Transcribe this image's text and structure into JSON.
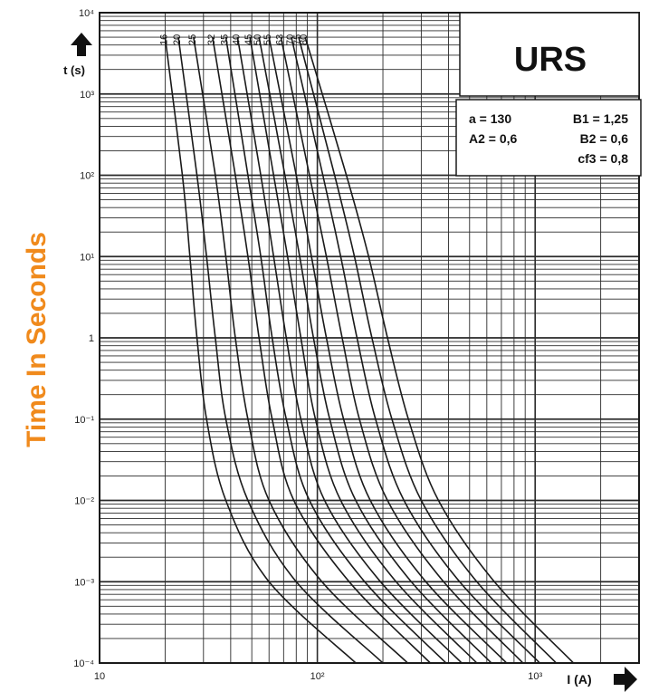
{
  "chart_data": {
    "type": "line",
    "title": "URS",
    "ylabel_side": "Time In Seconds",
    "ylabel_axis": "t (s)",
    "xlabel": "I (A)",
    "x_scale": "log",
    "y_scale": "log",
    "xlim": [
      10,
      3000
    ],
    "ylim": [
      0.0001,
      10000
    ],
    "grid": true,
    "x_ticks": [
      {
        "value": 10,
        "label": "10"
      },
      {
        "value": 100,
        "label": "10²"
      },
      {
        "value": 1000,
        "label": "10³"
      }
    ],
    "y_ticks": [
      {
        "value": 10000,
        "label": "10⁴"
      },
      {
        "value": 1000,
        "label": "10³"
      },
      {
        "value": 100,
        "label": "10²"
      },
      {
        "value": 10,
        "label": "10¹"
      },
      {
        "value": 1,
        "label": "1"
      },
      {
        "value": 0.1,
        "label": "10⁻¹"
      },
      {
        "value": 0.01,
        "label": "10⁻²"
      },
      {
        "value": 0.001,
        "label": "10⁻³"
      },
      {
        "value": 0.0001,
        "label": "10⁻⁴"
      }
    ],
    "parameters": [
      {
        "label": "a",
        "value": "130"
      },
      {
        "label": "B1",
        "value": "1,25"
      },
      {
        "label": "A2",
        "value": "0,6"
      },
      {
        "label": "B2",
        "value": "0,6"
      },
      {
        "label": "cf3",
        "value": "0,8"
      }
    ],
    "series": [
      {
        "name": "16",
        "x": [
          20,
          24,
          26,
          28,
          31,
          38,
          60,
          150
        ],
        "y": [
          5000,
          100,
          10,
          1,
          0.1,
          0.01,
          0.001,
          0.0001
        ]
      },
      {
        "name": "20",
        "x": [
          23,
          28,
          31,
          34,
          38,
          48,
          80,
          200
        ],
        "y": [
          5000,
          100,
          10,
          1,
          0.1,
          0.01,
          0.001,
          0.0001
        ]
      },
      {
        "name": "25",
        "x": [
          27,
          34,
          38,
          42,
          48,
          60,
          105,
          260
        ],
        "y": [
          5000,
          100,
          10,
          1,
          0.1,
          0.01,
          0.001,
          0.0001
        ]
      },
      {
        "name": "32",
        "x": [
          33,
          42,
          48,
          54,
          62,
          78,
          140,
          330
        ],
        "y": [
          5000,
          100,
          10,
          1,
          0.1,
          0.01,
          0.001,
          0.0001
        ]
      },
      {
        "name": "35",
        "x": [
          38,
          48,
          55,
          62,
          72,
          92,
          165,
          390
        ],
        "y": [
          5000,
          100,
          10,
          1,
          0.1,
          0.01,
          0.001,
          0.0001
        ]
      },
      {
        "name": "40",
        "x": [
          43,
          55,
          63,
          72,
          84,
          108,
          195,
          460
        ],
        "y": [
          5000,
          100,
          10,
          1,
          0.1,
          0.01,
          0.001,
          0.0001
        ]
      },
      {
        "name": "45",
        "x": [
          49,
          63,
          73,
          84,
          98,
          128,
          230,
          540
        ],
        "y": [
          5000,
          100,
          10,
          1,
          0.1,
          0.01,
          0.001,
          0.0001
        ]
      },
      {
        "name": "50",
        "x": [
          54,
          71,
          83,
          96,
          114,
          150,
          270,
          630
        ],
        "y": [
          5000,
          100,
          10,
          1,
          0.1,
          0.01,
          0.001,
          0.0001
        ]
      },
      {
        "name": "55",
        "x": [
          60,
          80,
          94,
          110,
          132,
          175,
          315,
          740
        ],
        "y": [
          5000,
          100,
          10,
          1,
          0.1,
          0.01,
          0.001,
          0.0001
        ]
      },
      {
        "name": "63",
        "x": [
          68,
          92,
          110,
          130,
          156,
          210,
          380,
          880
        ],
        "y": [
          5000,
          100,
          10,
          1,
          0.1,
          0.01,
          0.001,
          0.0001
        ]
      },
      {
        "name": "70",
        "x": [
          76,
          106,
          128,
          152,
          185,
          250,
          450,
          1050
        ],
        "y": [
          5000,
          100,
          10,
          1,
          0.1,
          0.01,
          0.001,
          0.0001
        ]
      },
      {
        "name": "75",
        "x": [
          82,
          120,
          148,
          178,
          220,
          300,
          540,
          1250
        ],
        "y": [
          5000,
          100,
          10,
          1,
          0.1,
          0.01,
          0.001,
          0.0001
        ]
      },
      {
        "name": "80",
        "x": [
          88,
          136,
          172,
          210,
          262,
          360,
          650,
          1500
        ],
        "y": [
          5000,
          100,
          10,
          1,
          0.1,
          0.01,
          0.001,
          0.0001
        ]
      }
    ],
    "colors": {
      "side_label": "#f08a1c",
      "line": "#1a1a1a",
      "grid": "#2a2a2a",
      "background": "#ffffff"
    },
    "icons": {
      "y_axis_arrow": "arrow-up-icon",
      "x_axis_arrow": "arrow-right-icon"
    }
  }
}
